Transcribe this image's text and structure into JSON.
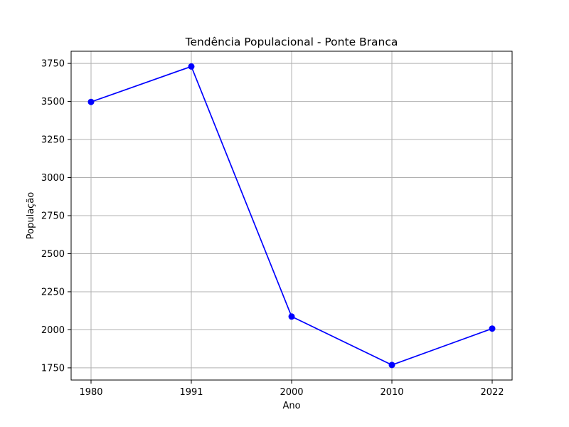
{
  "chart_data": {
    "type": "line",
    "title": "Tendência Populacional - Ponte Branca",
    "xlabel": "Ano",
    "ylabel": "População",
    "categories": [
      "1980",
      "1991",
      "2000",
      "2010",
      "2022"
    ],
    "series": [
      {
        "values": [
          3497,
          3730,
          2087,
          1769,
          2008
        ],
        "color": "#0000ff"
      }
    ],
    "y_ticks": [
      1750,
      2000,
      2250,
      2500,
      2750,
      3000,
      3250,
      3500,
      3750
    ],
    "ylim": [
      1670,
      3830
    ],
    "grid": true,
    "marker": "circle"
  }
}
